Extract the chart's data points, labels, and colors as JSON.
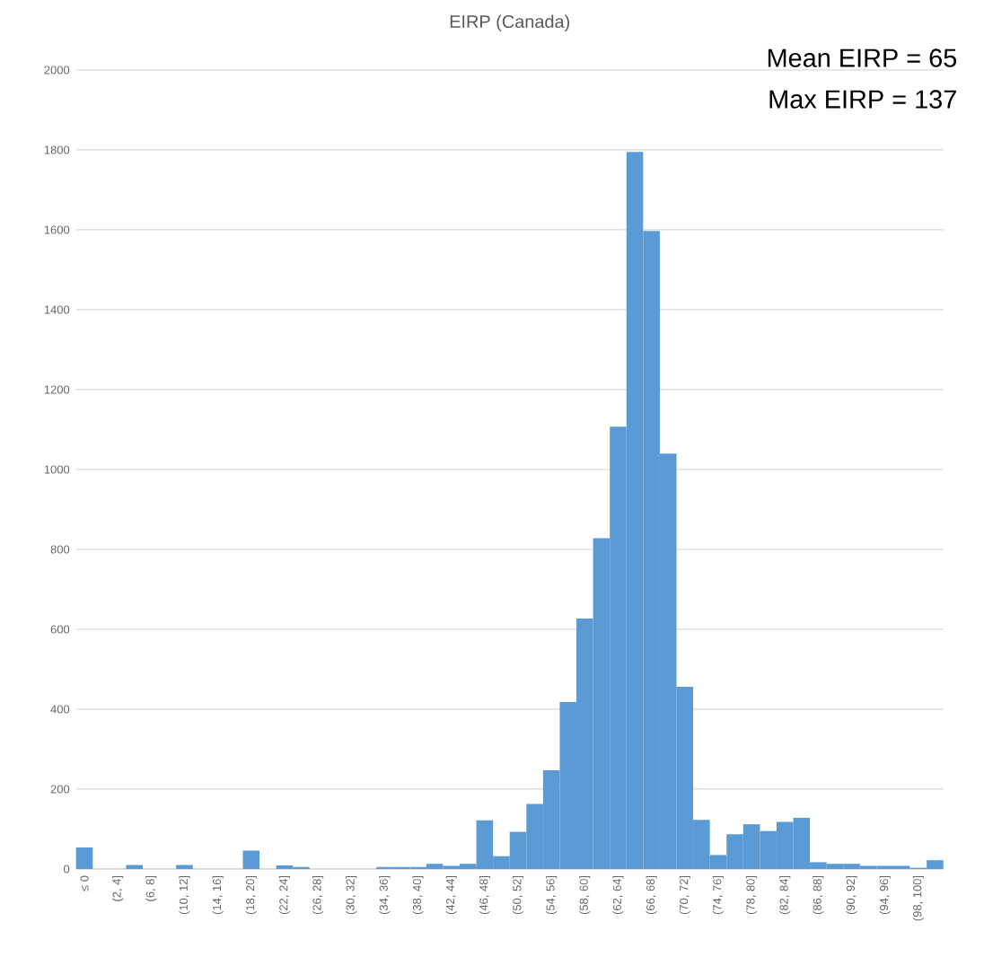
{
  "chart_data": {
    "type": "bar",
    "title": "EIRP (Canada)",
    "categories": [
      "≤ 0",
      null,
      "(2, 4]",
      null,
      "(6, 8]",
      null,
      "(10, 12]",
      null,
      "(14, 16]",
      null,
      "(18, 20]",
      null,
      "(22, 24]",
      null,
      "(26, 28]",
      null,
      "(30, 32]",
      null,
      "(34, 36]",
      null,
      "(38, 40]",
      null,
      "(42, 44]",
      null,
      "(46, 48]",
      null,
      "(50, 52]",
      null,
      "(54, 56]",
      null,
      "(58, 60]",
      null,
      "(62, 64]",
      null,
      "(66, 68]",
      null,
      "(70, 72]",
      null,
      "(74, 76]",
      null,
      "(78, 80]",
      null,
      "(82, 84]",
      null,
      "(86, 88]",
      null,
      "(90, 92]",
      null,
      "(94, 96]",
      null,
      "(98, 100]",
      null
    ],
    "values": [
      54,
      0,
      0,
      10,
      0,
      0,
      10,
      0,
      0,
      0,
      46,
      0,
      9,
      5,
      0,
      0,
      0,
      0,
      5,
      5,
      5,
      13,
      8,
      13,
      122,
      32,
      93,
      163,
      247,
      418,
      627,
      828,
      1107,
      1795,
      1597,
      1040,
      456,
      123,
      35,
      87,
      112,
      95,
      118,
      128,
      17,
      13,
      13,
      8,
      8,
      8,
      3,
      22
    ],
    "color": "#5b9bd5",
    "ylim": [
      0,
      2000
    ],
    "yticks": [
      0,
      200,
      400,
      600,
      800,
      1000,
      1200,
      1400,
      1600,
      1800,
      2000
    ],
    "grid": "y",
    "annotations": [
      "Mean EIRP = 65",
      "Max EIRP = 137"
    ]
  }
}
